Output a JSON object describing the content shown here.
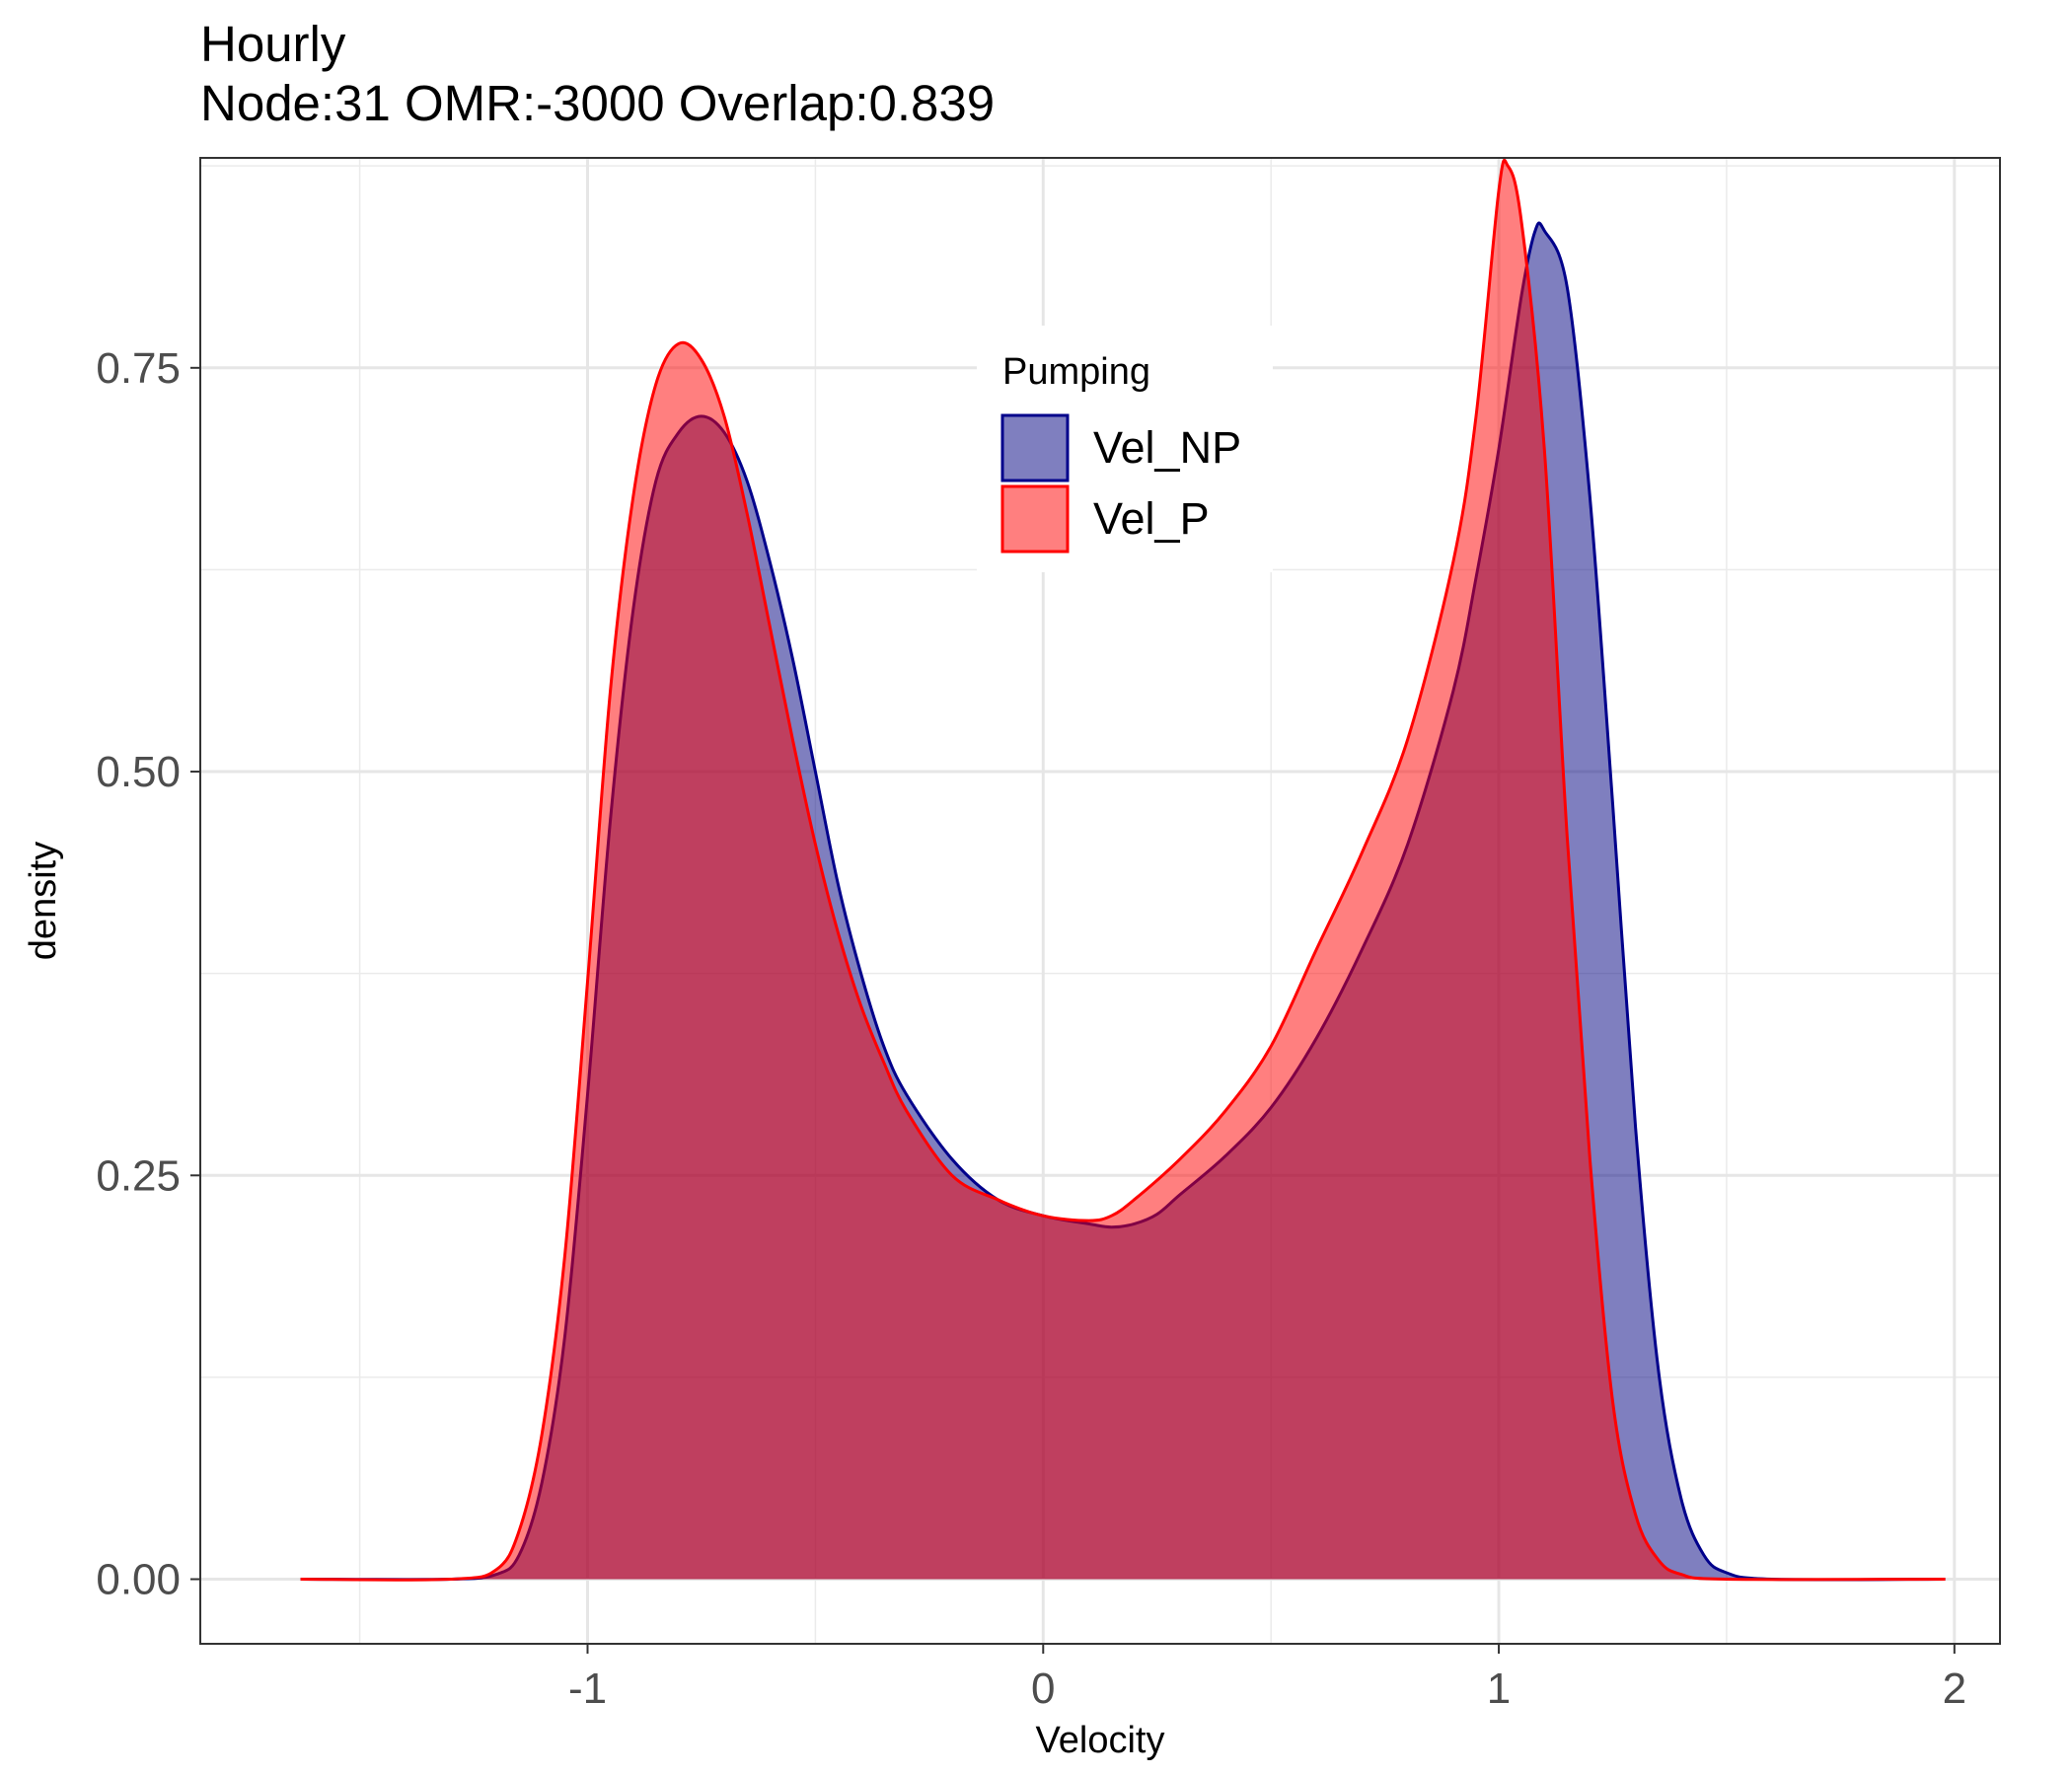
{
  "chart_data": {
    "type": "area",
    "title": "Hourly",
    "subtitle": "Node:31 OMR:-3000  Overlap:0.839",
    "xlabel": "Velocity",
    "ylabel": "density",
    "xlim": [
      -1.85,
      2.1
    ],
    "ylim": [
      -0.04,
      0.88
    ],
    "x_ticks": [
      -1,
      0,
      1,
      2
    ],
    "x_tick_labels": [
      "-1",
      "0",
      "1",
      "2"
    ],
    "y_ticks": [
      0.0,
      0.25,
      0.5,
      0.75
    ],
    "y_tick_labels": [
      "0.00",
      "0.25",
      "0.50",
      "0.75"
    ],
    "grid": true,
    "legend": {
      "title": "Pumping",
      "placement": "top-center (inside plot)"
    },
    "series": [
      {
        "name": "Vel_NP",
        "fill": "#000080",
        "stroke": "#00008b",
        "points": [
          [
            -1.63,
            0.0
          ],
          [
            -1.3,
            0.0
          ],
          [
            -1.2,
            0.003
          ],
          [
            -1.15,
            0.015
          ],
          [
            -1.1,
            0.06
          ],
          [
            -1.05,
            0.15
          ],
          [
            -1.0,
            0.3
          ],
          [
            -0.95,
            0.47
          ],
          [
            -0.9,
            0.6
          ],
          [
            -0.85,
            0.68
          ],
          [
            -0.8,
            0.71
          ],
          [
            -0.75,
            0.72
          ],
          [
            -0.7,
            0.71
          ],
          [
            -0.65,
            0.68
          ],
          [
            -0.6,
            0.63
          ],
          [
            -0.55,
            0.57
          ],
          [
            -0.5,
            0.5
          ],
          [
            -0.45,
            0.43
          ],
          [
            -0.4,
            0.375
          ],
          [
            -0.35,
            0.33
          ],
          [
            -0.3,
            0.3
          ],
          [
            -0.2,
            0.26
          ],
          [
            -0.1,
            0.235
          ],
          [
            0.0,
            0.225
          ],
          [
            0.1,
            0.22
          ],
          [
            0.15,
            0.218
          ],
          [
            0.2,
            0.22
          ],
          [
            0.25,
            0.226
          ],
          [
            0.3,
            0.238
          ],
          [
            0.4,
            0.262
          ],
          [
            0.5,
            0.292
          ],
          [
            0.6,
            0.335
          ],
          [
            0.7,
            0.39
          ],
          [
            0.8,
            0.455
          ],
          [
            0.9,
            0.55
          ],
          [
            0.95,
            0.62
          ],
          [
            1.0,
            0.7
          ],
          [
            1.05,
            0.795
          ],
          [
            1.08,
            0.835
          ],
          [
            1.1,
            0.835
          ],
          [
            1.15,
            0.8
          ],
          [
            1.2,
            0.67
          ],
          [
            1.25,
            0.48
          ],
          [
            1.3,
            0.28
          ],
          [
            1.35,
            0.13
          ],
          [
            1.4,
            0.05
          ],
          [
            1.45,
            0.015
          ],
          [
            1.5,
            0.004
          ],
          [
            1.6,
            0.0
          ],
          [
            1.98,
            0.0
          ]
        ]
      },
      {
        "name": "Vel_P",
        "fill": "#ff0000",
        "stroke": "#ff0000",
        "points": [
          [
            -1.63,
            0.0
          ],
          [
            -1.3,
            0.0
          ],
          [
            -1.2,
            0.006
          ],
          [
            -1.15,
            0.03
          ],
          [
            -1.1,
            0.09
          ],
          [
            -1.05,
            0.2
          ],
          [
            -1.0,
            0.37
          ],
          [
            -0.95,
            0.55
          ],
          [
            -0.9,
            0.67
          ],
          [
            -0.85,
            0.74
          ],
          [
            -0.8,
            0.765
          ],
          [
            -0.75,
            0.755
          ],
          [
            -0.7,
            0.72
          ],
          [
            -0.65,
            0.66
          ],
          [
            -0.6,
            0.59
          ],
          [
            -0.55,
            0.52
          ],
          [
            -0.5,
            0.455
          ],
          [
            -0.45,
            0.4
          ],
          [
            -0.4,
            0.355
          ],
          [
            -0.35,
            0.32
          ],
          [
            -0.3,
            0.29
          ],
          [
            -0.2,
            0.25
          ],
          [
            -0.1,
            0.235
          ],
          [
            0.0,
            0.225
          ],
          [
            0.1,
            0.222
          ],
          [
            0.15,
            0.225
          ],
          [
            0.2,
            0.235
          ],
          [
            0.3,
            0.26
          ],
          [
            0.4,
            0.29
          ],
          [
            0.5,
            0.33
          ],
          [
            0.6,
            0.39
          ],
          [
            0.7,
            0.45
          ],
          [
            0.8,
            0.52
          ],
          [
            0.9,
            0.63
          ],
          [
            0.95,
            0.72
          ],
          [
            1.0,
            0.86
          ],
          [
            1.02,
            0.875
          ],
          [
            1.05,
            0.84
          ],
          [
            1.1,
            0.7
          ],
          [
            1.15,
            0.46
          ],
          [
            1.2,
            0.26
          ],
          [
            1.25,
            0.11
          ],
          [
            1.3,
            0.04
          ],
          [
            1.35,
            0.012
          ],
          [
            1.4,
            0.003
          ],
          [
            1.5,
            0.0
          ],
          [
            1.98,
            0.0
          ]
        ]
      }
    ]
  }
}
